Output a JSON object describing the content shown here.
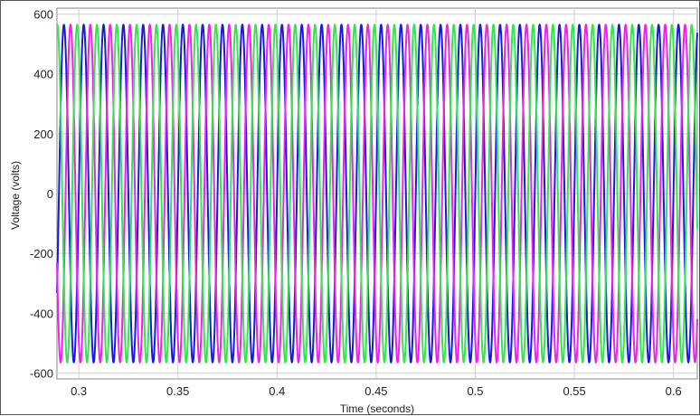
{
  "chart_data": {
    "type": "line",
    "title": "",
    "xlabel": "Time (seconds)",
    "ylabel": "Voltage (volts)",
    "xlim": [
      0.289,
      0.612
    ],
    "ylim": [
      -620,
      620
    ],
    "xticks": [
      0.3,
      0.35,
      0.4,
      0.45,
      0.5,
      0.55,
      0.6
    ],
    "xtick_labels": [
      "0.3",
      "0.35",
      "0.4",
      "0.45",
      "0.5",
      "0.55",
      "0.6"
    ],
    "yticks": [
      600,
      400,
      200,
      0,
      -200,
      -400,
      -600
    ],
    "ytick_labels": [
      "600",
      "400",
      "200",
      "0",
      "-200",
      "-400",
      "-600"
    ],
    "grid": true,
    "legend": "none",
    "series": [
      {
        "color": "#1a1adf",
        "amplitude": 565,
        "frequency_hz": 100,
        "phase_deg": 0
      },
      {
        "color": "#ee22ee",
        "amplitude": 565,
        "frequency_hz": 100,
        "phase_deg": -120
      },
      {
        "color": "#33e64d",
        "amplitude": 565,
        "frequency_hz": 100,
        "phase_deg": 120
      }
    ]
  }
}
